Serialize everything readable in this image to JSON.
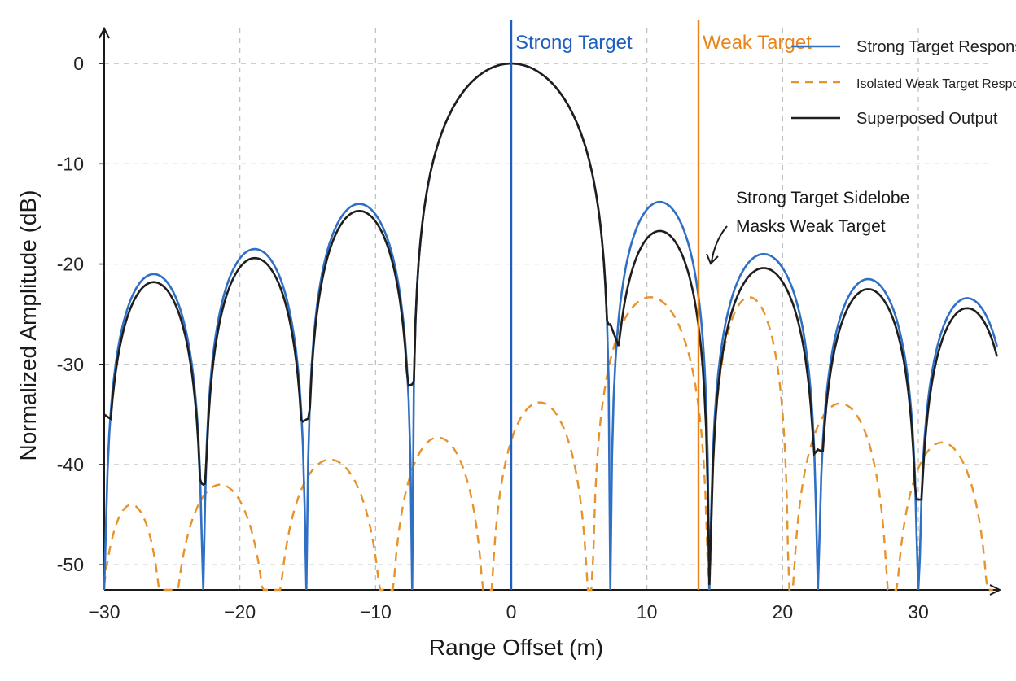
{
  "chart_data": {
    "type": "line",
    "title": "",
    "xlabel": "Range Offset (m)",
    "ylabel": "Normalized Amplitude (dB)",
    "xlim": [
      -30,
      36
    ],
    "ylim": [
      -52.5,
      3.5
    ],
    "x_ticks": [
      -30,
      -20,
      -10,
      0,
      10,
      20,
      30
    ],
    "x_tick_labels": [
      "−30",
      "−20",
      "−10",
      "0",
      "10",
      "20",
      "30"
    ],
    "y_ticks": [
      0,
      -10,
      -20,
      -30,
      -40,
      -50
    ],
    "y_tick_labels": [
      "0",
      "-10",
      "-20",
      "-30",
      "-40",
      "-50"
    ],
    "grid": true,
    "legend_position": "top-right",
    "colors": {
      "strong": "#2f6fc4",
      "weak": "#e8922a",
      "superposed": "#1e1e1e",
      "strong_marker": "#1f5fbf",
      "weak_marker": "#e8841a",
      "grid": "#bdbdbd"
    },
    "markers": [
      {
        "label": "Strong Target",
        "x": 0,
        "color": "#1f5fbf"
      },
      {
        "label": "Weak Target",
        "x": 13.8,
        "color": "#e8841a"
      }
    ],
    "series": [
      {
        "name": "Strong Target Response",
        "style": "solid",
        "color": "#2f6fc4",
        "peak_x": 0,
        "peak_db": 0,
        "nulls_x": [
          -30,
          -22.7,
          -15.1,
          -7.3,
          7.3,
          14.6,
          22.6,
          30
        ],
        "lobe_peaks": [
          {
            "x": -26.6,
            "y": -21.0
          },
          {
            "x": -18.9,
            "y": -18.5
          },
          {
            "x": -11.3,
            "y": -14.0
          },
          {
            "x": 10.3,
            "y": -13.8
          },
          {
            "x": 18.8,
            "y": -19.0
          },
          {
            "x": 26.3,
            "y": -21.5
          },
          {
            "x": 33.6,
            "y": -23.4
          }
        ],
        "end_x": 35.8,
        "end_y": -27.5
      },
      {
        "name": "Isolated Weak Target Response",
        "style": "dashed",
        "color": "#e8922a",
        "peak_x": 13.8,
        "nulls_x": [
          -25.3,
          -17.6,
          -9.1,
          -1.7,
          5.9,
          14.6,
          20.5,
          28.0,
          35.5
        ],
        "lobe_peaks": [
          {
            "x": -28.0,
            "y": -44.0
          },
          {
            "x": -20.7,
            "y": -42.0
          },
          {
            "x": -13.2,
            "y": -39.5
          },
          {
            "x": -5.3,
            "y": -37.3
          },
          {
            "x": 2.3,
            "y": -33.8
          },
          {
            "x": 11.4,
            "y": -23.3
          },
          {
            "x": 15.8,
            "y": -23.3
          },
          {
            "x": 23.9,
            "y": -33.9
          },
          {
            "x": 31.6,
            "y": -37.8
          }
        ]
      },
      {
        "name": "Superposed Output",
        "style": "solid",
        "color": "#1e1e1e",
        "peak_x": 0,
        "peak_db": 0,
        "dips": [
          {
            "x": -30,
            "y": -35.0
          },
          {
            "x": -22.7,
            "y": -42.0
          },
          {
            "x": -15.1,
            "y": -35.5
          },
          {
            "x": -7.3,
            "y": -32.0
          },
          {
            "x": 7.3,
            "y": -26.0
          },
          {
            "x": 14.6,
            "y": -52.0
          },
          {
            "x": 22.6,
            "y": -38.5
          },
          {
            "x": 30.0,
            "y": -43.5
          }
        ],
        "lobe_peaks": [
          {
            "x": -26.6,
            "y": -21.8
          },
          {
            "x": -18.9,
            "y": -19.4
          },
          {
            "x": -11.3,
            "y": -14.7
          },
          {
            "x": 10.3,
            "y": -16.7
          },
          {
            "x": 18.8,
            "y": -20.4
          },
          {
            "x": 26.3,
            "y": -22.5
          },
          {
            "x": 33.6,
            "y": -24.4
          }
        ],
        "end_x": 35.8,
        "end_y": -27.5
      }
    ],
    "annotation": {
      "line1": "Strong Target Sidelobe",
      "line2": "Masks Weak Target"
    }
  }
}
